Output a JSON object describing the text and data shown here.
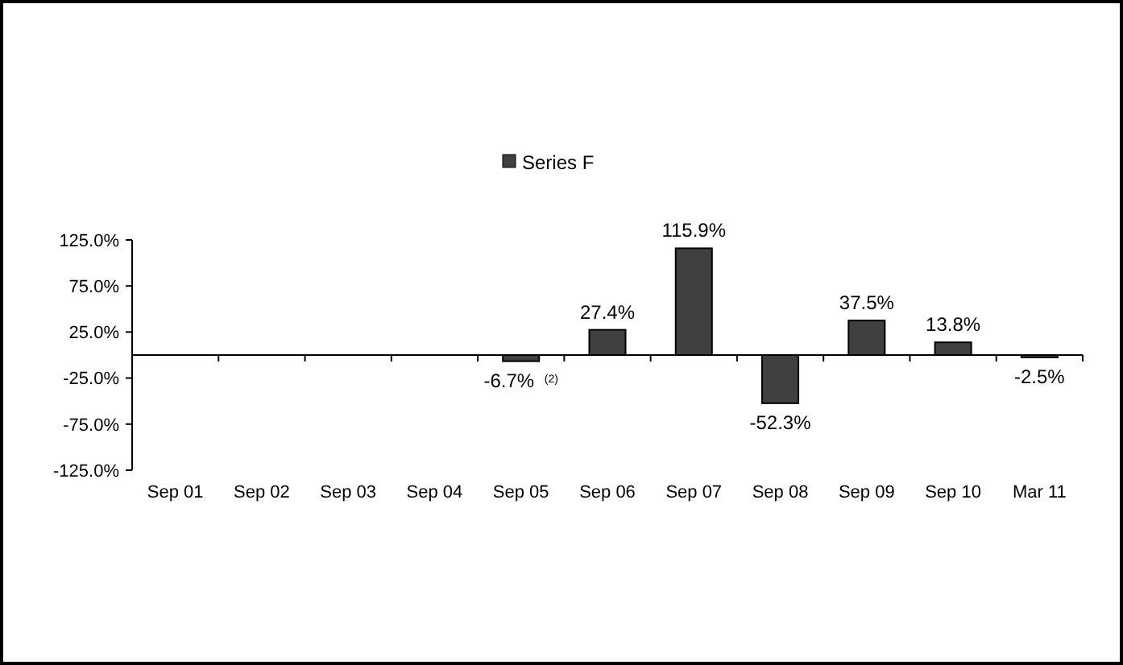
{
  "chart_data": {
    "type": "bar",
    "categories": [
      "Sep 01",
      "Sep 02",
      "Sep 03",
      "Sep 04",
      "Sep 05",
      "Sep 06",
      "Sep 07",
      "Sep 08",
      "Sep 09",
      "Sep 10",
      "Mar 11"
    ],
    "series": [
      {
        "name": "Series F",
        "color": "#404040",
        "values": [
          null,
          null,
          null,
          null,
          -6.7,
          27.4,
          115.9,
          -52.3,
          37.5,
          13.8,
          -2.5
        ],
        "value_labels": [
          null,
          null,
          null,
          null,
          "-6.7% $^{(2)}$",
          "27.4%",
          "115.9%",
          "-52.3%",
          "37.5%",
          "13.8%",
          "-2.5%"
        ]
      }
    ],
    "ylim": [
      -125,
      125
    ],
    "yticks": [
      {
        "value": 125,
        "label": "125.0%"
      },
      {
        "value": 75,
        "label": "75.0%"
      },
      {
        "value": 25,
        "label": "25.0%"
      },
      {
        "value": -25,
        "label": "-25.0%"
      },
      {
        "value": -75,
        "label": "-75.0%"
      },
      {
        "value": -125,
        "label": "-125.0%"
      }
    ],
    "legend": "top",
    "grid": false
  }
}
